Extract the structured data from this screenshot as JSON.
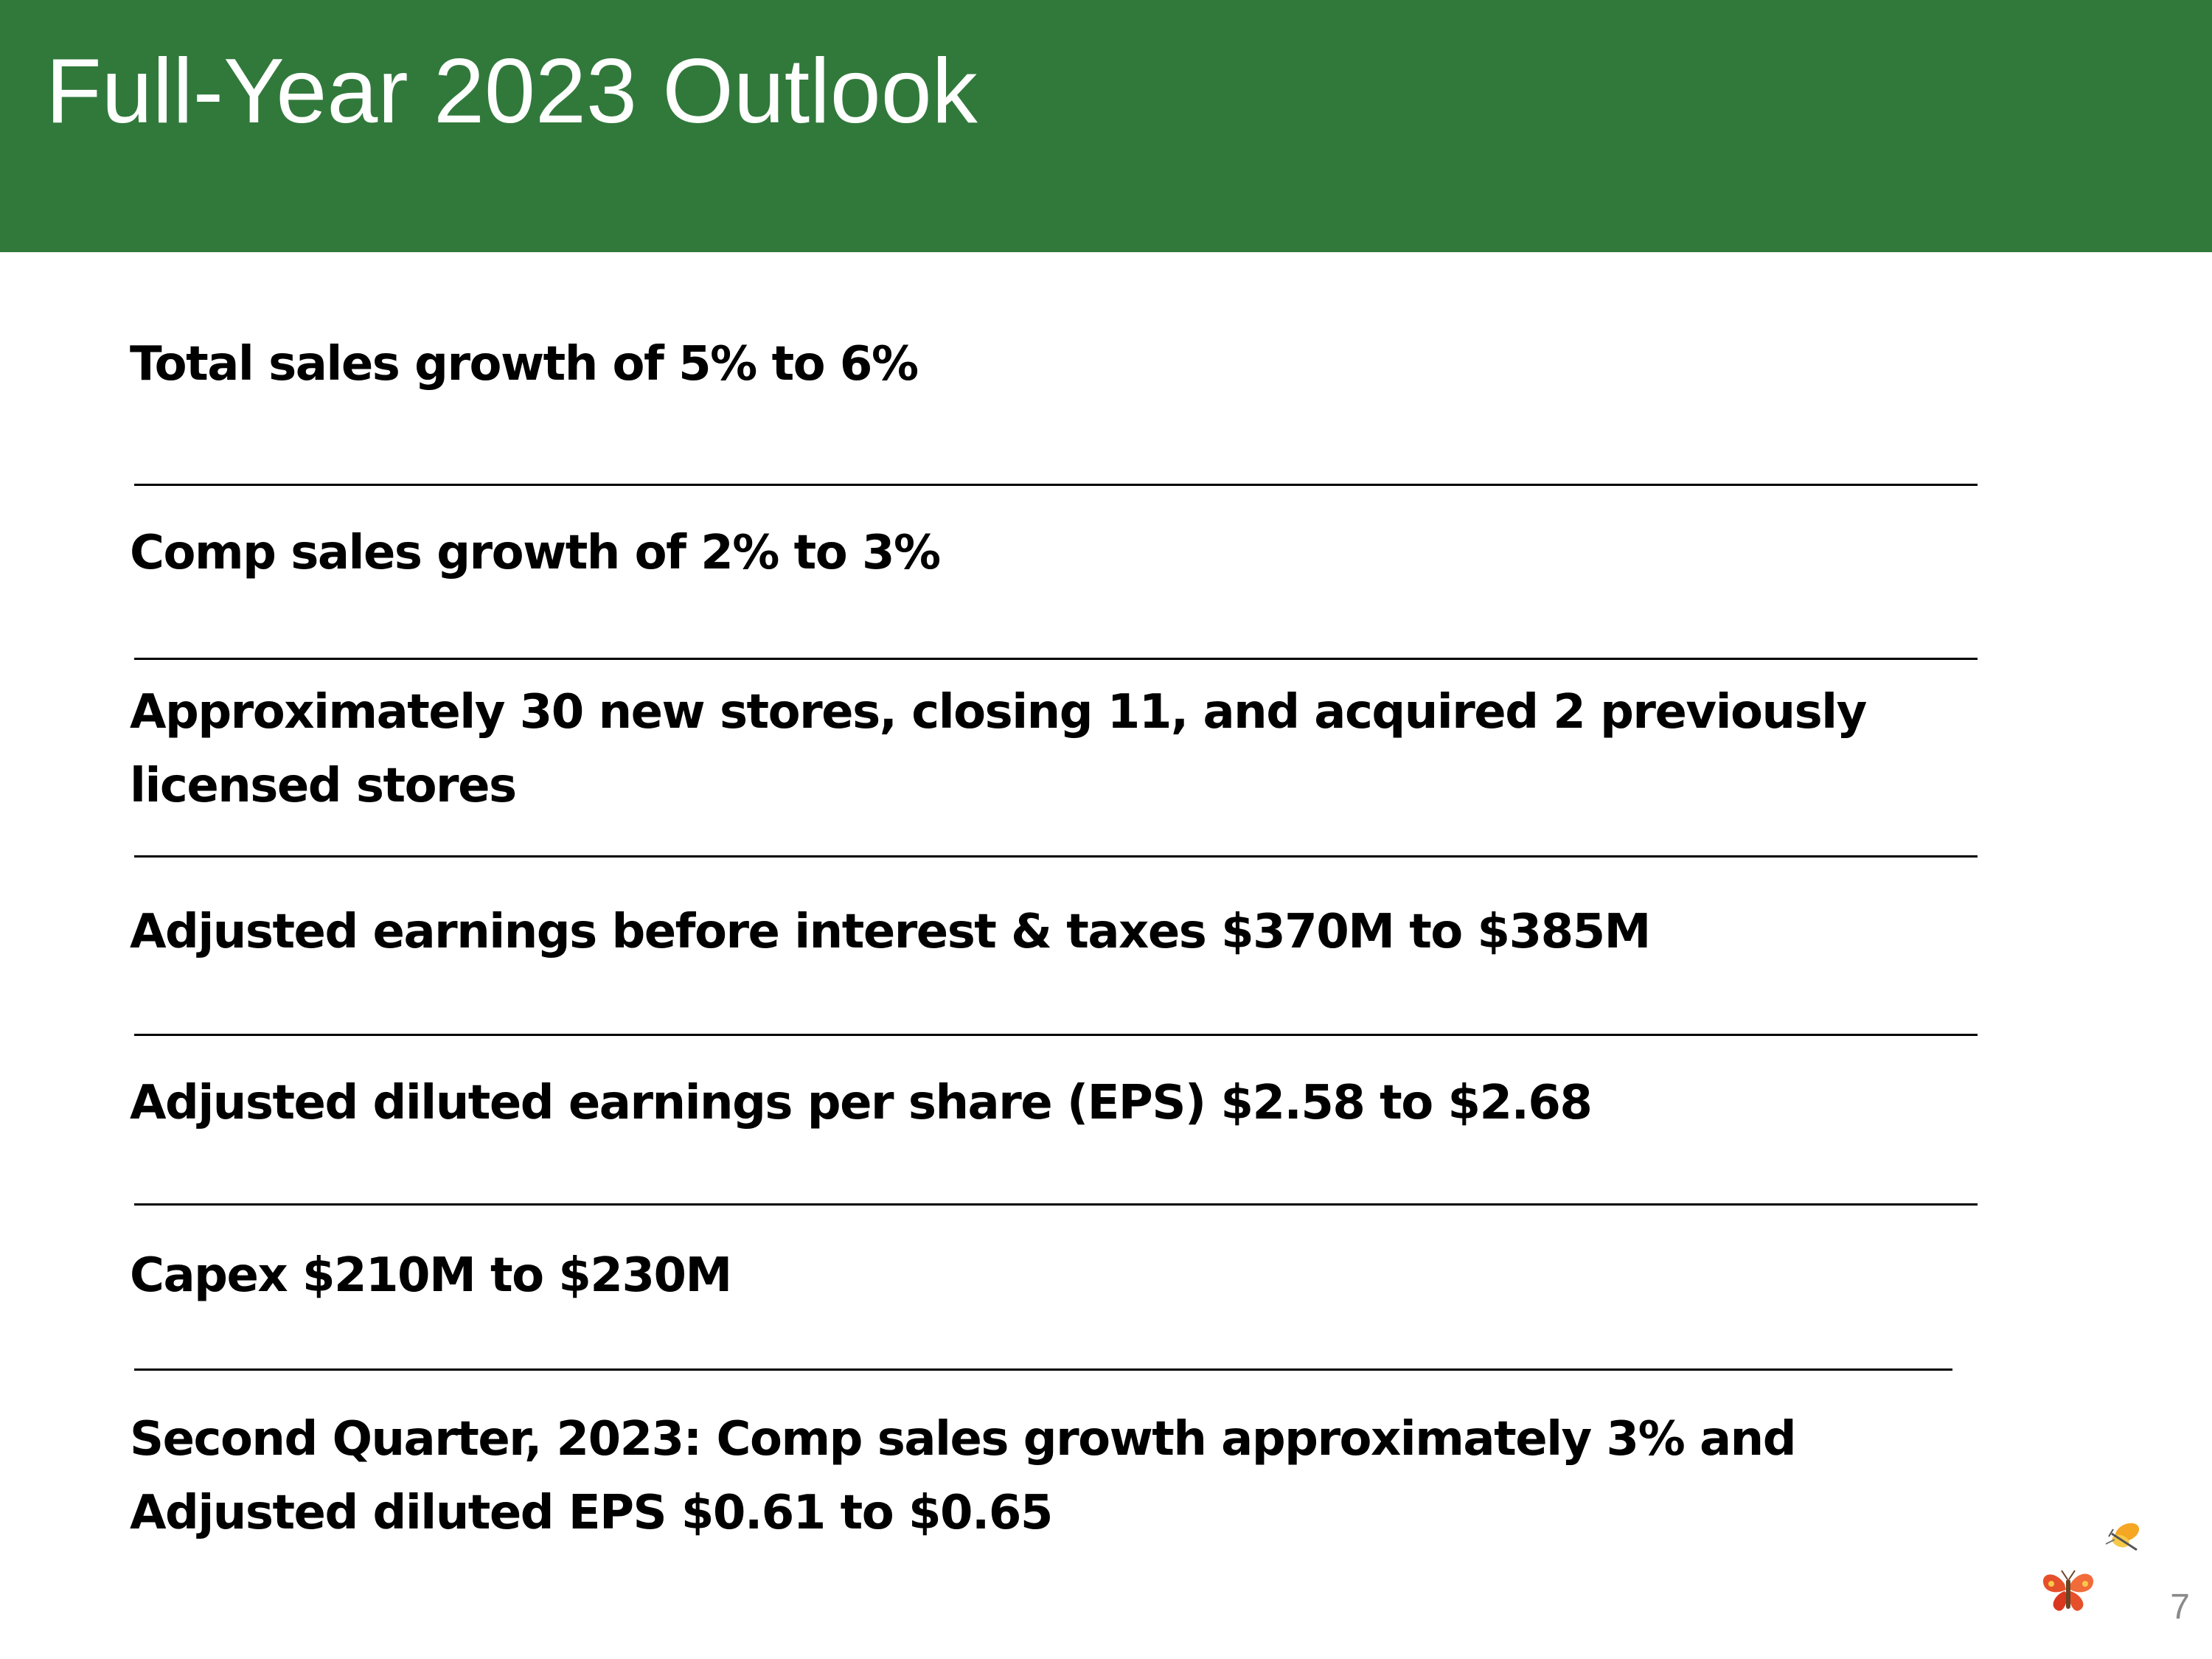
{
  "slide": {
    "title": "Full-Year 2023 Outlook",
    "page_number": "7",
    "header_color": "#31793b"
  },
  "outlook_items": [
    {
      "line1": "Total sales growth of 5% to 6%"
    },
    {
      "line1": "Comp sales growth of 2% to 3%"
    },
    {
      "line1": "Approximately 30 new stores, closing 11, and acquired 2 previously",
      "line2": "licensed stores"
    },
    {
      "line1": "Adjusted earnings before interest & taxes $370M to $385M"
    },
    {
      "line1": "Adjusted diluted earnings per share (EPS) $2.58 to $2.68"
    },
    {
      "line1": "Capex $210M to $230M"
    },
    {
      "line1": "Second Quarter, 2023: Comp sales growth approximately 3% and",
      "line2": "Adjusted diluted EPS $0.61 to $0.65"
    }
  ],
  "logo": {
    "icon": "butterflies-logo-icon"
  }
}
